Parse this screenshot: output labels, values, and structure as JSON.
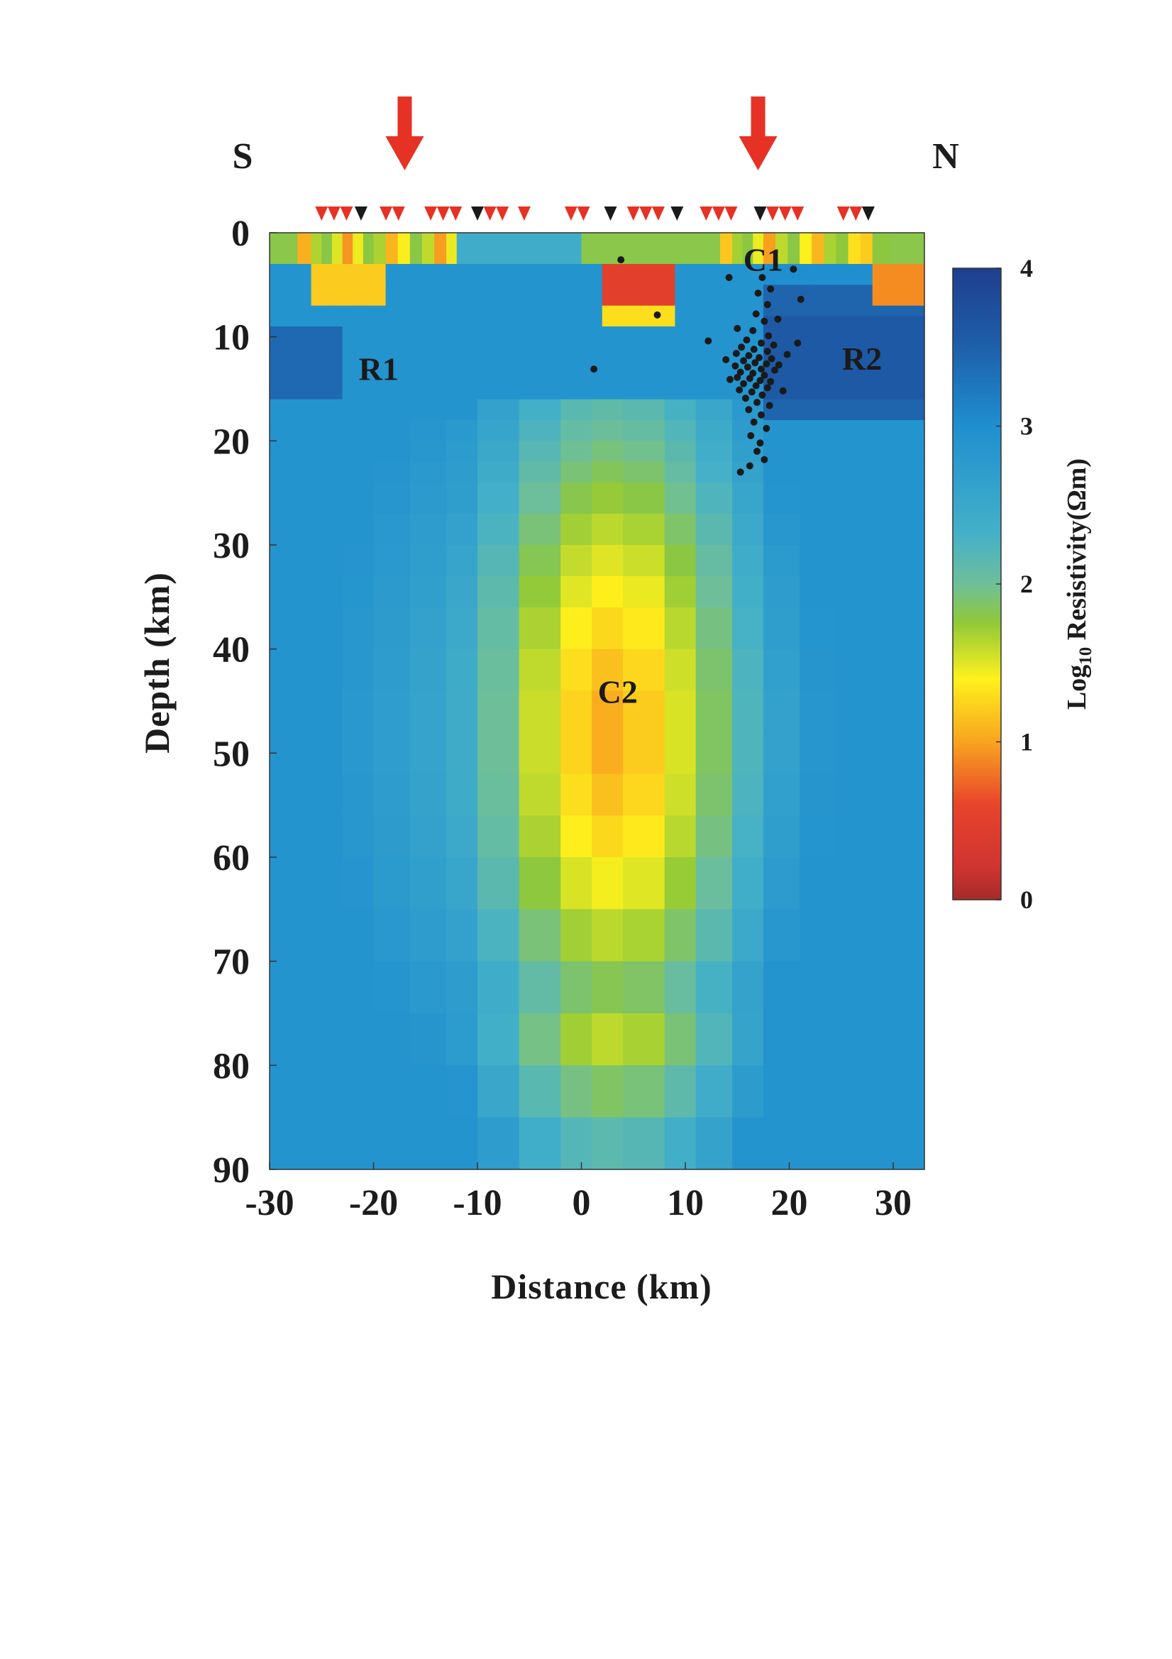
{
  "chart_data": {
    "type": "heatmap",
    "title": "",
    "xlabel": "Distance (km)",
    "ylabel": "Depth (km)",
    "xlim": [
      -30,
      33
    ],
    "ylim": [
      0,
      90
    ],
    "x_ticks": [
      "-30",
      "-20",
      "-10",
      "0",
      "10",
      "20",
      "30"
    ],
    "y_ticks": [
      "0",
      "10",
      "20",
      "30",
      "40",
      "50",
      "60",
      "70",
      "80",
      "90"
    ],
    "direction_labels": {
      "left": "S",
      "right": "N"
    },
    "colorbar": {
      "label": "Log10 Resistivity(Ωm)",
      "label_parts": {
        "prefix": "Log",
        "subscript": "10",
        "suffix": " Resistivity(Ωm)"
      },
      "ticks": [
        "0",
        "1",
        "2",
        "3",
        "4"
      ],
      "range": [
        0,
        4
      ]
    },
    "annotations": [
      {
        "text": "C1",
        "x": 17.5,
        "y": 2.5
      },
      {
        "text": "R1",
        "x": -19.5,
        "y": 13
      },
      {
        "text": "R2",
        "x": 27,
        "y": 12
      },
      {
        "text": "C2",
        "x": 3.5,
        "y": 44
      }
    ],
    "arrows_x": [
      -17,
      17
    ],
    "stations": [
      {
        "x": -25,
        "color": "red"
      },
      {
        "x": -23.8,
        "color": "red"
      },
      {
        "x": -22.6,
        "color": "red"
      },
      {
        "x": -21.2,
        "color": "black"
      },
      {
        "x": -18.8,
        "color": "red"
      },
      {
        "x": -17.6,
        "color": "red"
      },
      {
        "x": -14.5,
        "color": "red"
      },
      {
        "x": -13.3,
        "color": "red"
      },
      {
        "x": -12.1,
        "color": "red"
      },
      {
        "x": -10,
        "color": "black"
      },
      {
        "x": -8.8,
        "color": "red"
      },
      {
        "x": -7.6,
        "color": "red"
      },
      {
        "x": -5.5,
        "color": "red"
      },
      {
        "x": -1,
        "color": "red"
      },
      {
        "x": 0.2,
        "color": "red"
      },
      {
        "x": 2.8,
        "color": "black"
      },
      {
        "x": 5,
        "color": "red"
      },
      {
        "x": 6.2,
        "color": "red"
      },
      {
        "x": 7.4,
        "color": "red"
      },
      {
        "x": 9.2,
        "color": "black"
      },
      {
        "x": 12,
        "color": "red"
      },
      {
        "x": 13.2,
        "color": "red"
      },
      {
        "x": 14.4,
        "color": "red"
      },
      {
        "x": 17.2,
        "color": "black"
      },
      {
        "x": 18.4,
        "color": "red"
      },
      {
        "x": 19.6,
        "color": "red"
      },
      {
        "x": 20.8,
        "color": "red"
      },
      {
        "x": 25.2,
        "color": "red"
      },
      {
        "x": 26.4,
        "color": "red"
      },
      {
        "x": 27.6,
        "color": "black"
      }
    ],
    "earthquakes": [
      [
        3.8,
        2.6
      ],
      [
        7.3,
        7.9
      ],
      [
        1.2,
        13.1
      ],
      [
        12.2,
        10.4
      ],
      [
        20.8,
        10.6
      ],
      [
        14.2,
        4.3
      ],
      [
        20.4,
        3.5
      ],
      [
        21.1,
        6.4
      ],
      [
        15.3,
        23
      ],
      [
        17.4,
        4.3
      ],
      [
        18.2,
        5.4
      ],
      [
        17.9,
        6.9
      ],
      [
        16.8,
        7.8
      ],
      [
        17.6,
        8.5
      ],
      [
        16.5,
        9.4
      ],
      [
        18.0,
        9.9
      ],
      [
        15.9,
        10.3
      ],
      [
        17.3,
        10.6
      ],
      [
        18.5,
        10.8
      ],
      [
        15.4,
        11.0
      ],
      [
        16.6,
        11.2
      ],
      [
        17.9,
        11.4
      ],
      [
        14.9,
        11.6
      ],
      [
        16.1,
        11.8
      ],
      [
        17.1,
        12.0
      ],
      [
        18.3,
        12.1
      ],
      [
        15.6,
        12.3
      ],
      [
        16.7,
        12.5
      ],
      [
        17.8,
        12.6
      ],
      [
        14.8,
        12.8
      ],
      [
        16.0,
        12.9
      ],
      [
        17.3,
        13.1
      ],
      [
        18.6,
        13.2
      ],
      [
        15.3,
        13.4
      ],
      [
        16.5,
        13.5
      ],
      [
        17.6,
        13.7
      ],
      [
        15.0,
        13.9
      ],
      [
        16.2,
        14.0
      ],
      [
        17.2,
        14.2
      ],
      [
        18.2,
        14.3
      ],
      [
        15.6,
        14.5
      ],
      [
        16.8,
        14.7
      ],
      [
        17.9,
        14.9
      ],
      [
        15.2,
        15.1
      ],
      [
        16.4,
        15.3
      ],
      [
        17.4,
        15.6
      ],
      [
        15.8,
        15.9
      ],
      [
        16.9,
        16.3
      ],
      [
        18.1,
        16.6
      ],
      [
        16.1,
        17.0
      ],
      [
        17.3,
        17.5
      ],
      [
        16.6,
        18.2
      ],
      [
        17.8,
        18.8
      ],
      [
        16.3,
        19.5
      ],
      [
        17.2,
        20.2
      ],
      [
        16.9,
        21.0
      ],
      [
        17.6,
        21.8
      ],
      [
        16.2,
        22.4
      ],
      [
        19.4,
        15.2
      ],
      [
        19.0,
        12.7
      ],
      [
        14.3,
        14.1
      ],
      [
        13.9,
        12.2
      ],
      [
        19.8,
        11.7
      ],
      [
        15.0,
        9.2
      ],
      [
        18.9,
        8.3
      ],
      [
        17.0,
        5.8
      ]
    ]
  }
}
